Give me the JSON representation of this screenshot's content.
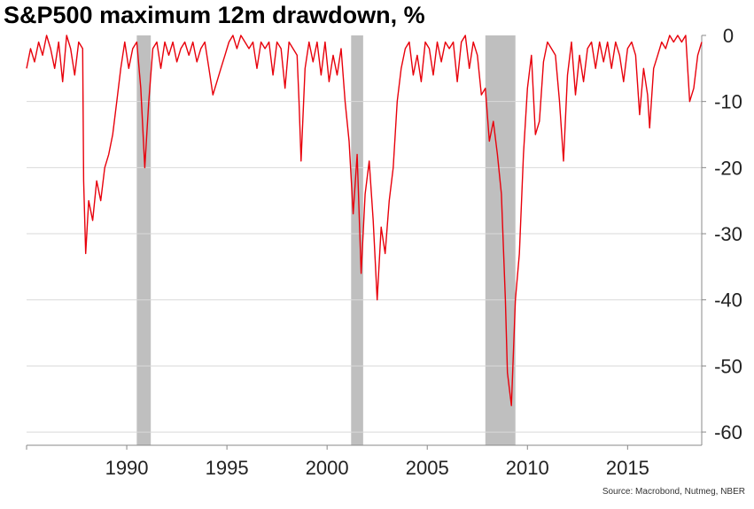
{
  "chart_data": {
    "type": "line",
    "title": "S&P500 maximum 12m drawdown, %",
    "xlabel": "",
    "ylabel": "",
    "xlim": [
      1985.0,
      2018.7
    ],
    "ylim": [
      -62,
      0
    ],
    "x_ticks": [
      1990,
      1995,
      2000,
      2005,
      2010,
      2015
    ],
    "y_ticks": [
      0,
      -10,
      -20,
      -30,
      -40,
      -50,
      -60
    ],
    "grid": "horizontal",
    "legend": "none",
    "line_color": "#e8000b",
    "recession_color": "#bfbfbf",
    "recession_bands": [
      {
        "start": 1990.5,
        "end": 1991.2
      },
      {
        "start": 2001.2,
        "end": 2001.8
      },
      {
        "start": 2007.9,
        "end": 2009.4
      }
    ],
    "series": [
      {
        "values": [
          [
            1985.0,
            -5
          ],
          [
            1985.2,
            -2
          ],
          [
            1985.4,
            -4
          ],
          [
            1985.6,
            -1
          ],
          [
            1985.8,
            -3
          ],
          [
            1986.0,
            0
          ],
          [
            1986.2,
            -2
          ],
          [
            1986.4,
            -5
          ],
          [
            1986.6,
            -1
          ],
          [
            1986.8,
            -7
          ],
          [
            1987.0,
            0
          ],
          [
            1987.2,
            -2
          ],
          [
            1987.4,
            -6
          ],
          [
            1987.6,
            -1
          ],
          [
            1987.8,
            -2
          ],
          [
            1987.85,
            -22
          ],
          [
            1987.95,
            -33
          ],
          [
            1988.1,
            -25
          ],
          [
            1988.3,
            -28
          ],
          [
            1988.5,
            -22
          ],
          [
            1988.7,
            -25
          ],
          [
            1988.9,
            -20
          ],
          [
            1989.1,
            -18
          ],
          [
            1989.3,
            -15
          ],
          [
            1989.5,
            -10
          ],
          [
            1989.7,
            -5
          ],
          [
            1989.9,
            -1
          ],
          [
            1990.1,
            -5
          ],
          [
            1990.3,
            -2
          ],
          [
            1990.5,
            -1
          ],
          [
            1990.7,
            -8
          ],
          [
            1990.9,
            -20
          ],
          [
            1991.1,
            -10
          ],
          [
            1991.3,
            -2
          ],
          [
            1991.5,
            -1
          ],
          [
            1991.7,
            -5
          ],
          [
            1991.9,
            -1
          ],
          [
            1992.1,
            -3
          ],
          [
            1992.3,
            -1
          ],
          [
            1992.5,
            -4
          ],
          [
            1992.7,
            -2
          ],
          [
            1992.9,
            -1
          ],
          [
            1993.1,
            -3
          ],
          [
            1993.3,
            -1
          ],
          [
            1993.5,
            -4
          ],
          [
            1993.7,
            -2
          ],
          [
            1993.9,
            -1
          ],
          [
            1994.1,
            -5
          ],
          [
            1994.3,
            -9
          ],
          [
            1994.5,
            -7
          ],
          [
            1994.7,
            -5
          ],
          [
            1994.9,
            -3
          ],
          [
            1995.1,
            -1
          ],
          [
            1995.3,
            0
          ],
          [
            1995.5,
            -2
          ],
          [
            1995.7,
            0
          ],
          [
            1995.9,
            -1
          ],
          [
            1996.1,
            -2
          ],
          [
            1996.3,
            -1
          ],
          [
            1996.5,
            -5
          ],
          [
            1996.7,
            -1
          ],
          [
            1996.9,
            -2
          ],
          [
            1997.1,
            -1
          ],
          [
            1997.3,
            -6
          ],
          [
            1997.5,
            -1
          ],
          [
            1997.7,
            -2
          ],
          [
            1997.9,
            -8
          ],
          [
            1998.1,
            -1
          ],
          [
            1998.3,
            -2
          ],
          [
            1998.5,
            -3
          ],
          [
            1998.6,
            -10
          ],
          [
            1998.7,
            -19
          ],
          [
            1998.9,
            -5
          ],
          [
            1999.1,
            -1
          ],
          [
            1999.3,
            -4
          ],
          [
            1999.5,
            -1
          ],
          [
            1999.7,
            -6
          ],
          [
            1999.9,
            -1
          ],
          [
            2000.1,
            -7
          ],
          [
            2000.3,
            -3
          ],
          [
            2000.5,
            -6
          ],
          [
            2000.7,
            -2
          ],
          [
            2000.9,
            -10
          ],
          [
            2001.1,
            -16
          ],
          [
            2001.3,
            -27
          ],
          [
            2001.5,
            -18
          ],
          [
            2001.7,
            -36
          ],
          [
            2001.9,
            -24
          ],
          [
            2002.1,
            -19
          ],
          [
            2002.3,
            -28
          ],
          [
            2002.5,
            -40
          ],
          [
            2002.7,
            -29
          ],
          [
            2002.9,
            -33
          ],
          [
            2003.1,
            -25
          ],
          [
            2003.3,
            -20
          ],
          [
            2003.5,
            -10
          ],
          [
            2003.7,
            -5
          ],
          [
            2003.9,
            -2
          ],
          [
            2004.1,
            -1
          ],
          [
            2004.3,
            -6
          ],
          [
            2004.5,
            -3
          ],
          [
            2004.7,
            -7
          ],
          [
            2004.9,
            -1
          ],
          [
            2005.1,
            -2
          ],
          [
            2005.3,
            -6
          ],
          [
            2005.5,
            -1
          ],
          [
            2005.7,
            -4
          ],
          [
            2005.9,
            -1
          ],
          [
            2006.1,
            -2
          ],
          [
            2006.3,
            -1
          ],
          [
            2006.5,
            -7
          ],
          [
            2006.7,
            -1
          ],
          [
            2006.9,
            0
          ],
          [
            2007.1,
            -5
          ],
          [
            2007.3,
            -1
          ],
          [
            2007.5,
            -3
          ],
          [
            2007.7,
            -9
          ],
          [
            2007.9,
            -8
          ],
          [
            2008.1,
            -16
          ],
          [
            2008.3,
            -13
          ],
          [
            2008.5,
            -18
          ],
          [
            2008.7,
            -24
          ],
          [
            2008.9,
            -40
          ],
          [
            2009.0,
            -51
          ],
          [
            2009.2,
            -56
          ],
          [
            2009.4,
            -40
          ],
          [
            2009.6,
            -33
          ],
          [
            2009.8,
            -18
          ],
          [
            2010.0,
            -8
          ],
          [
            2010.2,
            -3
          ],
          [
            2010.4,
            -15
          ],
          [
            2010.6,
            -13
          ],
          [
            2010.8,
            -4
          ],
          [
            2011.0,
            -1
          ],
          [
            2011.2,
            -2
          ],
          [
            2011.4,
            -3
          ],
          [
            2011.6,
            -10
          ],
          [
            2011.8,
            -19
          ],
          [
            2012.0,
            -6
          ],
          [
            2012.2,
            -1
          ],
          [
            2012.4,
            -9
          ],
          [
            2012.6,
            -3
          ],
          [
            2012.8,
            -7
          ],
          [
            2013.0,
            -2
          ],
          [
            2013.2,
            -1
          ],
          [
            2013.4,
            -5
          ],
          [
            2013.6,
            -1
          ],
          [
            2013.8,
            -4
          ],
          [
            2014.0,
            -1
          ],
          [
            2014.2,
            -5
          ],
          [
            2014.4,
            -1
          ],
          [
            2014.6,
            -3
          ],
          [
            2014.8,
            -7
          ],
          [
            2015.0,
            -2
          ],
          [
            2015.2,
            -1
          ],
          [
            2015.4,
            -3
          ],
          [
            2015.6,
            -12
          ],
          [
            2015.8,
            -5
          ],
          [
            2016.0,
            -9
          ],
          [
            2016.1,
            -14
          ],
          [
            2016.3,
            -5
          ],
          [
            2016.5,
            -3
          ],
          [
            2016.7,
            -1
          ],
          [
            2016.9,
            -2
          ],
          [
            2017.1,
            0
          ],
          [
            2017.3,
            -1
          ],
          [
            2017.5,
            0
          ],
          [
            2017.7,
            -1
          ],
          [
            2017.9,
            0
          ],
          [
            2018.1,
            -10
          ],
          [
            2018.3,
            -8
          ],
          [
            2018.5,
            -3
          ],
          [
            2018.7,
            -1
          ]
        ]
      }
    ]
  },
  "source_note": "Source:  Macrobond, Nutmeg, NBER"
}
